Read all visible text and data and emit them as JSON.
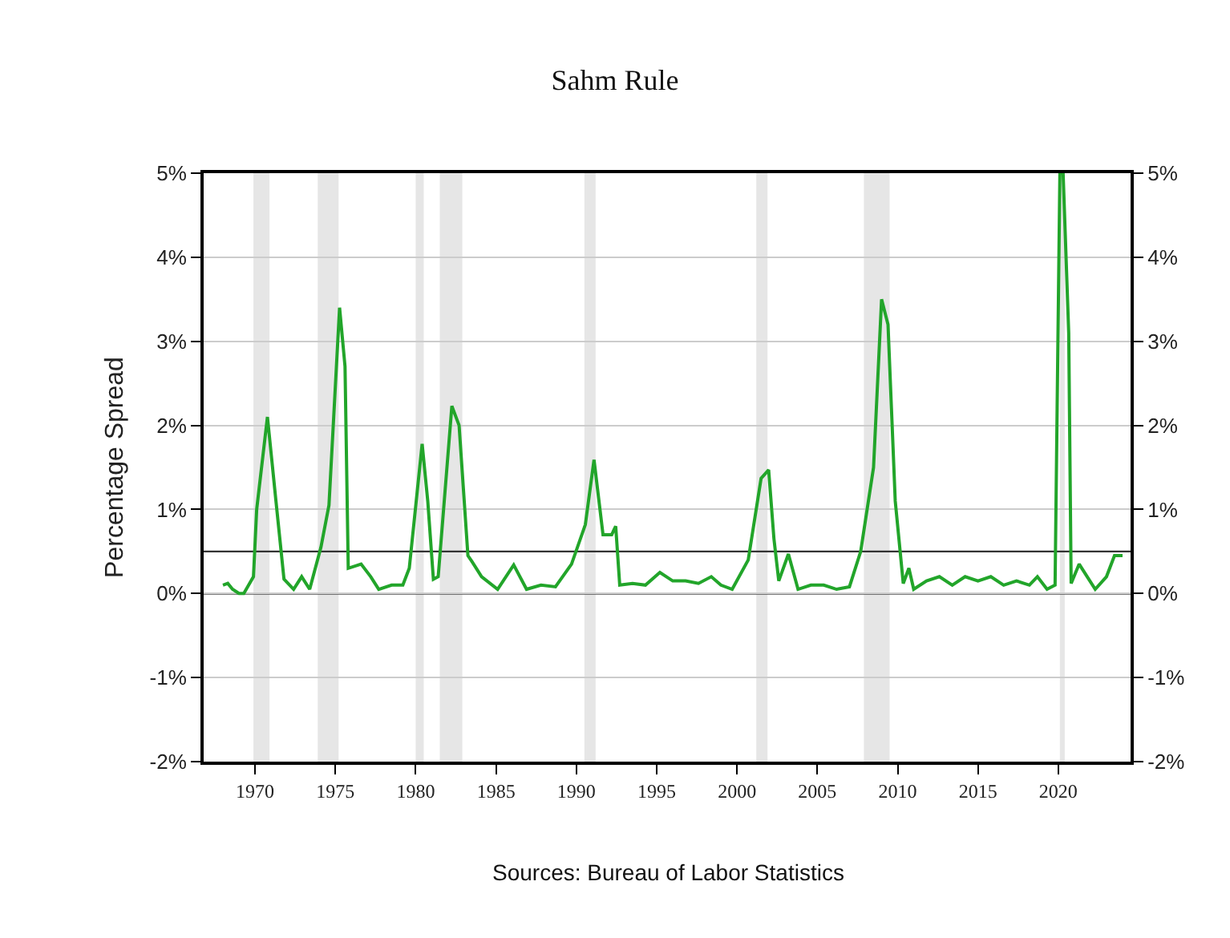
{
  "chart_data": {
    "type": "line",
    "title": "Sahm Rule",
    "ylabel": "Percentage Spread",
    "annotations": [
      "Sources: Bureau of Labor Statistics"
    ],
    "x": [
      1968.0,
      1968.3,
      1968.6,
      1969.0,
      1969.3,
      1969.6,
      1969.9,
      1970.1,
      1970.77,
      1971.3,
      1971.8,
      1972.4,
      1972.9,
      1973.4,
      1974.1,
      1974.6,
      1975.26,
      1975.6,
      1975.8,
      1976.6,
      1977.2,
      1977.7,
      1978.5,
      1979.2,
      1979.6,
      1980.4,
      1980.75,
      1981.1,
      1981.4,
      1982.25,
      1982.7,
      1983.25,
      1983.5,
      1984.1,
      1985.1,
      1986.1,
      1986.9,
      1987.8,
      1988.7,
      1989.7,
      1990.56,
      1991.1,
      1991.66,
      1992.2,
      1992.45,
      1992.7,
      1993.5,
      1994.3,
      1995.2,
      1996.0,
      1996.8,
      1997.6,
      1998.4,
      1999.0,
      1999.7,
      2000.7,
      2001.5,
      2001.97,
      2002.3,
      2002.6,
      2003.2,
      2003.8,
      2004.6,
      2005.4,
      2006.2,
      2007.0,
      2007.7,
      2008.5,
      2009.0,
      2009.4,
      2009.85,
      2010.35,
      2010.7,
      2011.0,
      2011.8,
      2012.6,
      2013.4,
      2014.2,
      2015.0,
      2015.8,
      2016.6,
      2017.4,
      2018.2,
      2018.7,
      2019.3,
      2019.8,
      2020.1,
      2020.3,
      2020.65,
      2020.8,
      2021.3,
      2021.8,
      2022.3,
      2023.0,
      2023.5,
      2024.0
    ],
    "series": [
      {
        "color": "#22a52a",
        "values": [
          0.1,
          0.12,
          0.05,
          0.0,
          0.0,
          0.1,
          0.2,
          1.0,
          2.1,
          1.1,
          0.17,
          0.05,
          0.2,
          0.05,
          0.55,
          1.05,
          3.4,
          2.7,
          0.3,
          0.35,
          0.2,
          0.05,
          0.1,
          0.1,
          0.3,
          1.78,
          1.1,
          0.17,
          0.2,
          2.23,
          2.0,
          0.45,
          0.38,
          0.2,
          0.05,
          0.34,
          0.05,
          0.1,
          0.08,
          0.35,
          0.82,
          1.59,
          0.7,
          0.7,
          0.8,
          0.1,
          0.12,
          0.1,
          0.25,
          0.15,
          0.15,
          0.12,
          0.2,
          0.1,
          0.05,
          0.4,
          1.37,
          1.47,
          0.65,
          0.15,
          0.47,
          0.05,
          0.1,
          0.1,
          0.05,
          0.08,
          0.5,
          1.5,
          3.5,
          3.2,
          1.1,
          0.12,
          0.3,
          0.05,
          0.15,
          0.2,
          0.1,
          0.2,
          0.15,
          0.2,
          0.1,
          0.15,
          0.1,
          0.2,
          0.05,
          0.1,
          5.0,
          5.0,
          3.1,
          0.12,
          0.35,
          0.2,
          0.05,
          0.2,
          0.45,
          0.45
        ]
      }
    ],
    "xlim": [
      1966.8,
      2024.5
    ],
    "xticks": [
      1970,
      1975,
      1980,
      1985,
      1990,
      1995,
      2000,
      2005,
      2010,
      2015,
      2020
    ],
    "ylim": [
      -2,
      5
    ],
    "yticks": [
      {
        "value": -2,
        "label": "-2%"
      },
      {
        "value": -1,
        "label": "-1%"
      },
      {
        "value": 0,
        "label": "0%"
      },
      {
        "value": 1,
        "label": "1%"
      },
      {
        "value": 2,
        "label": "2%"
      },
      {
        "value": 3,
        "label": "3%"
      },
      {
        "value": 4,
        "label": "4%"
      },
      {
        "value": 5,
        "label": "5%"
      }
    ],
    "y2lim": [
      -2,
      5
    ],
    "y2ticks": [
      {
        "value": -2,
        "label": "-2%"
      },
      {
        "value": -1,
        "label": "-1%"
      },
      {
        "value": 0,
        "label": "0%"
      },
      {
        "value": 1,
        "label": "1%"
      },
      {
        "value": 2,
        "label": "2%"
      },
      {
        "value": 3,
        "label": "3%"
      },
      {
        "value": 4,
        "label": "4%"
      },
      {
        "value": 5,
        "label": "5%"
      }
    ],
    "ref_lines": [
      {
        "axis": "y",
        "value": 0,
        "color": "#000000"
      },
      {
        "axis": "y",
        "value": 0.5,
        "color": "#333333"
      }
    ],
    "bands": [
      {
        "axis": "x",
        "from": 1969.9,
        "to": 1970.9,
        "color": "#e6e6e6"
      },
      {
        "axis": "x",
        "from": 1973.9,
        "to": 1975.2,
        "color": "#e6e6e6"
      },
      {
        "axis": "x",
        "from": 1980.0,
        "to": 1980.5,
        "color": "#e6e6e6"
      },
      {
        "axis": "x",
        "from": 1981.5,
        "to": 1982.9,
        "color": "#e6e6e6"
      },
      {
        "axis": "x",
        "from": 1990.5,
        "to": 1991.2,
        "color": "#e6e6e6"
      },
      {
        "axis": "x",
        "from": 2001.2,
        "to": 2001.9,
        "color": "#e6e6e6"
      },
      {
        "axis": "x",
        "from": 2007.9,
        "to": 2009.5,
        "color": "#e6e6e6"
      },
      {
        "axis": "x",
        "from": 2020.1,
        "to": 2020.4,
        "color": "#e6e6e6"
      }
    ],
    "grid": "y",
    "marker": "none",
    "line_style": "solid"
  }
}
